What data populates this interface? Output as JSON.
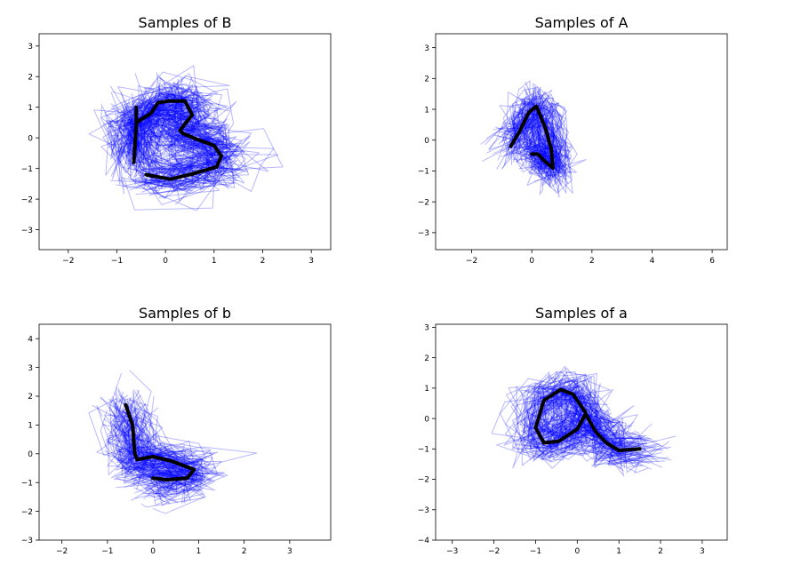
{
  "figure": {
    "background": "#ffffff"
  },
  "colors": {
    "samples": "#0000ff",
    "mean": "#000000",
    "axes": "#000000"
  },
  "chart_data": [
    {
      "type": "line",
      "title": "Samples of B",
      "xlabel": "",
      "ylabel": "",
      "xlim": [
        -2.6,
        3.4
      ],
      "ylim": [
        -3.65,
        3.4
      ],
      "xticks": [
        -2,
        -1,
        0,
        1,
        2,
        3
      ],
      "yticks": [
        -3,
        -2,
        -1,
        0,
        1,
        2,
        3
      ],
      "grid": false,
      "legend": "none",
      "sample_count": 100,
      "mean_stroke": {
        "x": [
          -0.6,
          -0.6,
          -0.65,
          -0.6,
          -0.3,
          -0.15,
          0.05,
          0.4,
          0.55,
          0.3,
          0.35,
          0.65,
          1.0,
          1.15,
          1.05,
          0.5,
          0.1,
          -0.4
        ],
        "y": [
          1.0,
          0.4,
          -0.8,
          0.5,
          0.8,
          1.15,
          1.2,
          1.2,
          0.75,
          0.25,
          0.15,
          -0.05,
          -0.25,
          -0.6,
          -0.95,
          -1.2,
          -1.35,
          -1.2
        ]
      }
    },
    {
      "type": "line",
      "title": "Samples of A",
      "xlabel": "",
      "ylabel": "",
      "xlim": [
        -3.2,
        6.5
      ],
      "ylim": [
        -3.55,
        3.45
      ],
      "xticks": [
        -2,
        0,
        2,
        4,
        6
      ],
      "yticks": [
        -3,
        -2,
        -1,
        0,
        1,
        2,
        3
      ],
      "grid": false,
      "legend": "none",
      "sample_count": 100,
      "mean_stroke": {
        "x": [
          -0.7,
          -0.4,
          -0.1,
          0.15,
          0.45,
          0.65,
          0.7,
          0.45,
          0.2,
          0.0
        ],
        "y": [
          -0.2,
          0.3,
          0.9,
          1.1,
          0.4,
          -0.3,
          -0.9,
          -0.7,
          -0.45,
          -0.45
        ]
      }
    },
    {
      "type": "line",
      "title": "Samples of b",
      "xlabel": "",
      "ylabel": "",
      "xlim": [
        -2.5,
        3.9
      ],
      "ylim": [
        -3.0,
        4.5
      ],
      "xticks": [
        -2,
        -1,
        0,
        1,
        2,
        3
      ],
      "yticks": [
        -3,
        -2,
        -1,
        0,
        1,
        2,
        3,
        4
      ],
      "grid": false,
      "legend": "none",
      "sample_count": 100,
      "mean_stroke": {
        "x": [
          -0.6,
          -0.45,
          -0.4,
          -0.35,
          0.0,
          0.4,
          0.9,
          0.75,
          0.3,
          0.0
        ],
        "y": [
          1.7,
          1.0,
          0.0,
          -0.2,
          -0.1,
          -0.25,
          -0.55,
          -0.85,
          -0.9,
          -0.85
        ]
      }
    },
    {
      "type": "line",
      "title": "Samples of a",
      "xlabel": "",
      "ylabel": "",
      "xlim": [
        -3.4,
        3.6
      ],
      "ylim": [
        -4.0,
        3.1
      ],
      "xticks": [
        -3,
        -2,
        -1,
        0,
        1,
        2,
        3
      ],
      "yticks": [
        -4,
        -3,
        -2,
        -1,
        0,
        1,
        2,
        3
      ],
      "grid": false,
      "legend": "none",
      "sample_count": 100,
      "mean_stroke": {
        "x": [
          0.2,
          -0.1,
          -0.4,
          -0.8,
          -1.0,
          -0.8,
          -0.45,
          0.0,
          0.2,
          0.45,
          0.7,
          1.0,
          1.5
        ],
        "y": [
          0.2,
          0.8,
          0.95,
          0.6,
          -0.3,
          -0.8,
          -0.75,
          -0.35,
          0.15,
          -0.45,
          -0.8,
          -1.05,
          -1.0
        ]
      }
    }
  ]
}
